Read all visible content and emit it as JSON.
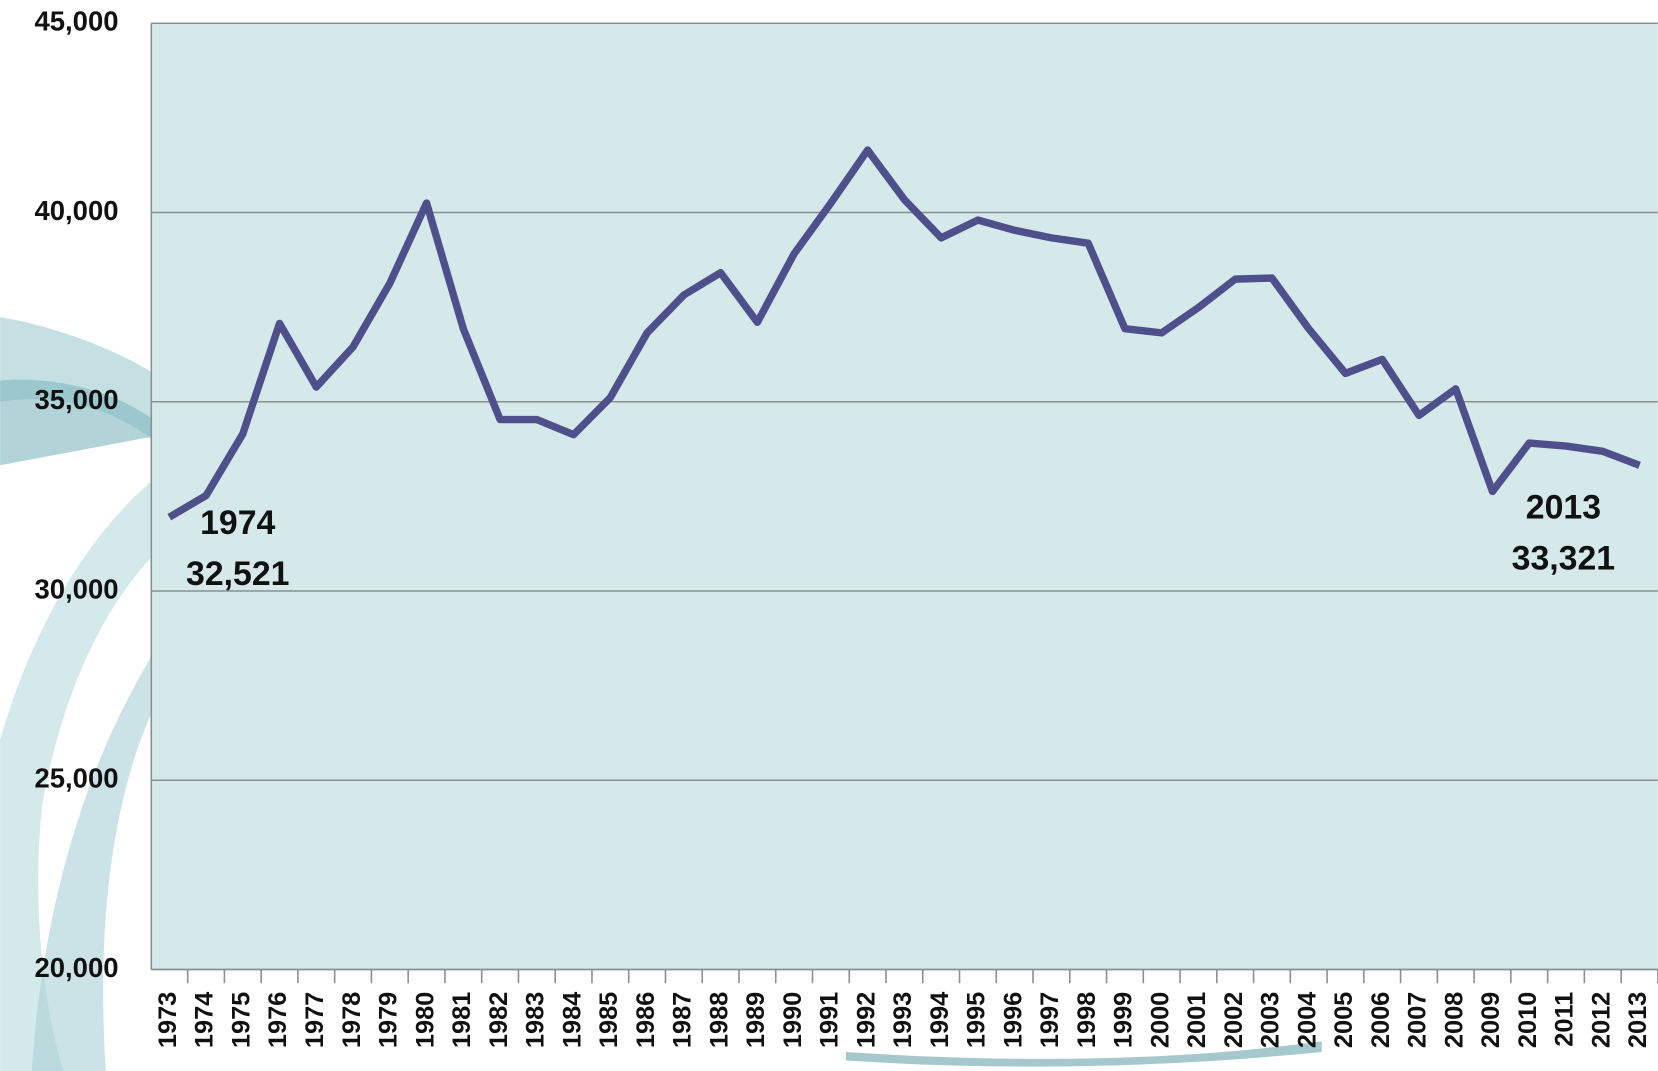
{
  "chart_data": {
    "type": "line",
    "categories": [
      "1973",
      "1974",
      "1975",
      "1976",
      "1977",
      "1978",
      "1979",
      "1980",
      "1981",
      "1982",
      "1983",
      "1984",
      "1985",
      "1986",
      "1987",
      "1988",
      "1989",
      "1990",
      "1991",
      "1992",
      "1993",
      "1994",
      "1995",
      "1996",
      "1997",
      "1998",
      "1999",
      "2000",
      "2001",
      "2002",
      "2003",
      "2004",
      "2005",
      "2006",
      "2007",
      "2008",
      "2009",
      "2010",
      "2011",
      "2012",
      "2013"
    ],
    "values": [
      31950,
      32521,
      34150,
      37070,
      35390,
      36450,
      38130,
      40250,
      36930,
      34530,
      34530,
      34130,
      35110,
      36820,
      37820,
      38410,
      37100,
      38910,
      40250,
      41650,
      40340,
      39330,
      39800,
      39530,
      39330,
      39190,
      36930,
      36820,
      37490,
      38240,
      38270,
      36930,
      35750,
      36120,
      34640,
      35340,
      32630,
      33910,
      33830,
      33690,
      33321
    ],
    "value_labels": [
      null,
      "32,521",
      null,
      null,
      null,
      null,
      null,
      null,
      null,
      null,
      null,
      null,
      null,
      null,
      null,
      null,
      null,
      null,
      null,
      null,
      null,
      null,
      null,
      null,
      null,
      null,
      null,
      null,
      null,
      null,
      null,
      null,
      null,
      null,
      null,
      null,
      null,
      null,
      null,
      null,
      "33,321"
    ],
    "color": "#4f4f8c",
    "ylim": [
      20000,
      45000
    ],
    "yticks": [
      {
        "value": 20000,
        "label": "20,000"
      },
      {
        "value": 25000,
        "label": "25,000"
      },
      {
        "value": 30000,
        "label": "30,000"
      },
      {
        "value": 35000,
        "label": "35,000"
      },
      {
        "value": 40000,
        "label": "40,000"
      },
      {
        "value": 45000,
        "label": "45,000"
      }
    ],
    "grid": true
  }
}
